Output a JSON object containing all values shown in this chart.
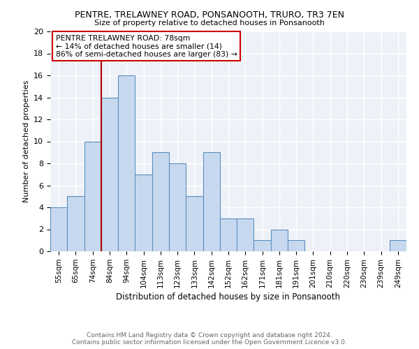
{
  "title1": "PENTRE, TRELAWNEY ROAD, PONSANOOTH, TRURO, TR3 7EN",
  "title2": "Size of property relative to detached houses in Ponsanooth",
  "xlabel": "Distribution of detached houses by size in Ponsanooth",
  "ylabel": "Number of detached properties",
  "categories": [
    "55sqm",
    "65sqm",
    "74sqm",
    "84sqm",
    "94sqm",
    "104sqm",
    "113sqm",
    "123sqm",
    "133sqm",
    "142sqm",
    "152sqm",
    "162sqm",
    "171sqm",
    "181sqm",
    "191sqm",
    "201sqm",
    "210sqm",
    "220sqm",
    "230sqm",
    "239sqm",
    "249sqm"
  ],
  "values": [
    4,
    5,
    10,
    14,
    16,
    7,
    9,
    8,
    5,
    9,
    3,
    3,
    1,
    2,
    1,
    0,
    0,
    0,
    0,
    0,
    1
  ],
  "bar_color": "#c8d9ef",
  "bar_edge_color": "#5a8fc0",
  "vline_x_index": 3,
  "vline_color": "#aa0000",
  "annotation_title": "PENTRE TRELAWNEY ROAD: 78sqm",
  "annotation_line1": "← 14% of detached houses are smaller (14)",
  "annotation_line2": "86% of semi-detached houses are larger (83) →",
  "annotation_box_color": "#ffffff",
  "annotation_box_edge": "#cc0000",
  "ylim": [
    0,
    20
  ],
  "yticks": [
    0,
    2,
    4,
    6,
    8,
    10,
    12,
    14,
    16,
    18,
    20
  ],
  "footnote1": "Contains HM Land Registry data © Crown copyright and database right 2024.",
  "footnote2": "Contains public sector information licensed under the Open Government Licence v3.0.",
  "bg_color": "#eef2f8"
}
